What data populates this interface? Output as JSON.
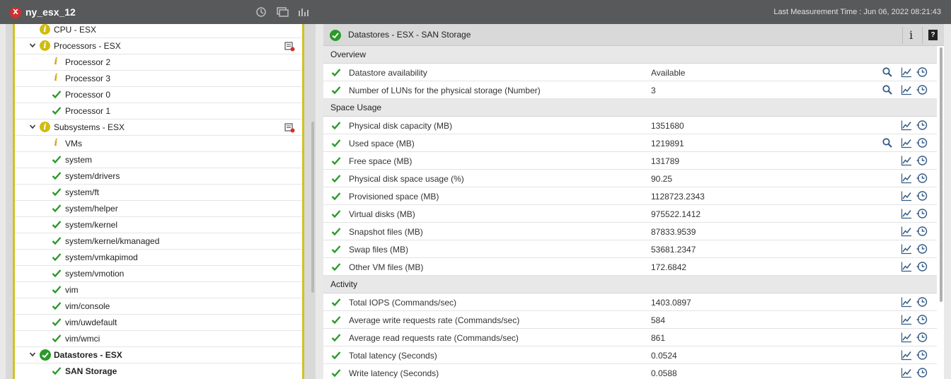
{
  "window": {
    "title": "ny_esx_12",
    "measurement_time": "Last Measurement Time : Jun 06, 2022 08:21:43"
  },
  "tree": [
    {
      "label": "CPU - ESX",
      "icon": "info-circle",
      "expand": false,
      "level": 1,
      "bold": false,
      "config": false
    },
    {
      "label": "Processors - ESX",
      "icon": "info-circle",
      "expand": true,
      "level": 1,
      "bold": false,
      "config": true
    },
    {
      "label": "Processor 2",
      "icon": "info",
      "expand": false,
      "level": 2,
      "bold": false,
      "config": false
    },
    {
      "label": "Processor 3",
      "icon": "info",
      "expand": false,
      "level": 2,
      "bold": false,
      "config": false
    },
    {
      "label": "Processor 0",
      "icon": "check",
      "expand": false,
      "level": 2,
      "bold": false,
      "config": false
    },
    {
      "label": "Processor 1",
      "icon": "check",
      "expand": false,
      "level": 2,
      "bold": false,
      "config": false
    },
    {
      "label": "Subsystems - ESX",
      "icon": "info-circle",
      "expand": true,
      "level": 1,
      "bold": false,
      "config": true
    },
    {
      "label": "VMs",
      "icon": "info",
      "expand": false,
      "level": 2,
      "bold": false,
      "config": false
    },
    {
      "label": "system",
      "icon": "check",
      "expand": false,
      "level": 2,
      "bold": false,
      "config": false
    },
    {
      "label": "system/drivers",
      "icon": "check",
      "expand": false,
      "level": 2,
      "bold": false,
      "config": false
    },
    {
      "label": "system/ft",
      "icon": "check",
      "expand": false,
      "level": 2,
      "bold": false,
      "config": false
    },
    {
      "label": "system/helper",
      "icon": "check",
      "expand": false,
      "level": 2,
      "bold": false,
      "config": false
    },
    {
      "label": "system/kernel",
      "icon": "check",
      "expand": false,
      "level": 2,
      "bold": false,
      "config": false
    },
    {
      "label": "system/kernel/kmanaged",
      "icon": "check",
      "expand": false,
      "level": 2,
      "bold": false,
      "config": false
    },
    {
      "label": "system/vmkapimod",
      "icon": "check",
      "expand": false,
      "level": 2,
      "bold": false,
      "config": false
    },
    {
      "label": "system/vmotion",
      "icon": "check",
      "expand": false,
      "level": 2,
      "bold": false,
      "config": false
    },
    {
      "label": "vim",
      "icon": "check",
      "expand": false,
      "level": 2,
      "bold": false,
      "config": false
    },
    {
      "label": "vim/console",
      "icon": "check",
      "expand": false,
      "level": 2,
      "bold": false,
      "config": false
    },
    {
      "label": "vim/uwdefault",
      "icon": "check",
      "expand": false,
      "level": 2,
      "bold": false,
      "config": false
    },
    {
      "label": "vim/wmci",
      "icon": "check",
      "expand": false,
      "level": 2,
      "bold": false,
      "config": false
    },
    {
      "label": "Datastores - ESX",
      "icon": "ok-circle",
      "expand": true,
      "level": 1,
      "bold": true,
      "config": false
    },
    {
      "label": "SAN Storage",
      "icon": "check",
      "expand": false,
      "level": 2,
      "bold": true,
      "config": false
    }
  ],
  "panel": {
    "title": "Datastores - ESX - SAN Storage",
    "info_label": "i",
    "help_label": "?"
  },
  "sections": [
    {
      "title": "Overview",
      "rows": [
        {
          "name": "Datastore availability",
          "value": "Available",
          "search": true
        },
        {
          "name": "Number of LUNs for the physical storage (Number)",
          "value": "3",
          "search": true
        }
      ]
    },
    {
      "title": "Space Usage",
      "rows": [
        {
          "name": "Physical disk capacity (MB)",
          "value": "1351680",
          "search": false
        },
        {
          "name": "Used space (MB)",
          "value": "1219891",
          "search": true
        },
        {
          "name": "Free space (MB)",
          "value": "131789",
          "search": false
        },
        {
          "name": "Physical disk space usage (%)",
          "value": "90.25",
          "search": false
        },
        {
          "name": "Provisioned space (MB)",
          "value": "1128723.2343",
          "search": false
        },
        {
          "name": "Virtual disks (MB)",
          "value": "975522.1412",
          "search": false
        },
        {
          "name": "Snapshot files (MB)",
          "value": "87833.9539",
          "search": false
        },
        {
          "name": "Swap files (MB)",
          "value": "53681.2347",
          "search": false
        },
        {
          "name": "Other VM files (MB)",
          "value": "172.6842",
          "search": false
        }
      ]
    },
    {
      "title": "Activity",
      "rows": [
        {
          "name": "Total IOPS (Commands/sec)",
          "value": "1403.0897",
          "search": false
        },
        {
          "name": "Average write requests rate (Commands/sec)",
          "value": "584",
          "search": false
        },
        {
          "name": "Average read requests rate (Commands/sec)",
          "value": "861",
          "search": false
        },
        {
          "name": "Total latency (Seconds)",
          "value": "0.0524",
          "search": false
        },
        {
          "name": "Write latency (Seconds)",
          "value": "0.0588",
          "search": false
        }
      ]
    }
  ],
  "colors": {
    "ok": "#2a9a2a",
    "info": "#d0bc0f",
    "accent": "#1f5f9f"
  }
}
